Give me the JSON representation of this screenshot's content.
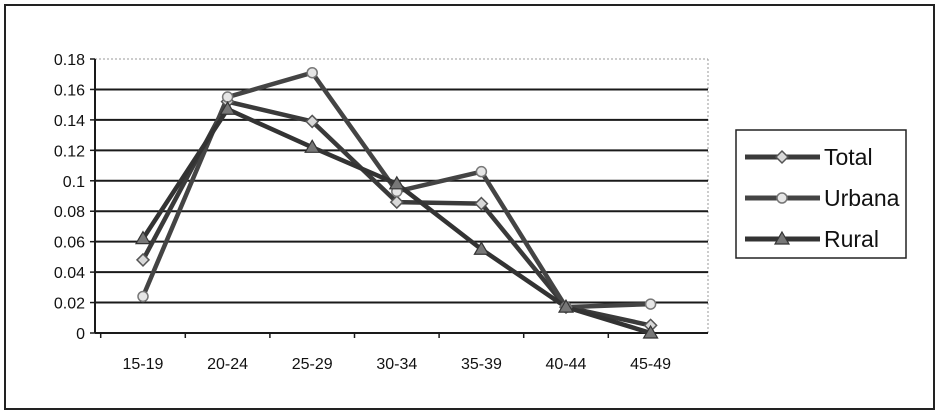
{
  "chart_data": {
    "type": "line",
    "title": "",
    "xlabel": "",
    "ylabel": "",
    "categories": [
      "15-19",
      "20-24",
      "25-29",
      "30-34",
      "35-39",
      "40-44",
      "45-49"
    ],
    "ylim": [
      0,
      0.18
    ],
    "yticks": [
      {
        "value": 0,
        "label": "0"
      },
      {
        "value": 0.02,
        "label": "0.02"
      },
      {
        "value": 0.04,
        "label": "0.04"
      },
      {
        "value": 0.06,
        "label": "0.06"
      },
      {
        "value": 0.08,
        "label": "0.08"
      },
      {
        "value": 0.1,
        "label": "0.1"
      },
      {
        "value": 0.12,
        "label": "0.12"
      },
      {
        "value": 0.14,
        "label": "0.14"
      },
      {
        "value": 0.16,
        "label": "0.16"
      },
      {
        "value": 0.18,
        "label": "0.18"
      }
    ],
    "grid": true,
    "legend_position": "right",
    "series": [
      {
        "name": "Total",
        "marker": "diamond",
        "color": "#3a3a3a",
        "values": [
          0.048,
          0.152,
          0.139,
          0.086,
          0.085,
          0.017,
          0.005
        ]
      },
      {
        "name": "Urbana",
        "marker": "circle",
        "color": "#444444",
        "values": [
          0.024,
          0.155,
          0.171,
          0.093,
          0.106,
          0.017,
          0.019
        ]
      },
      {
        "name": "Rural",
        "marker": "triangle",
        "color": "#333333",
        "values": [
          0.062,
          0.147,
          0.122,
          0.098,
          0.055,
          0.017,
          0.0
        ]
      }
    ]
  }
}
